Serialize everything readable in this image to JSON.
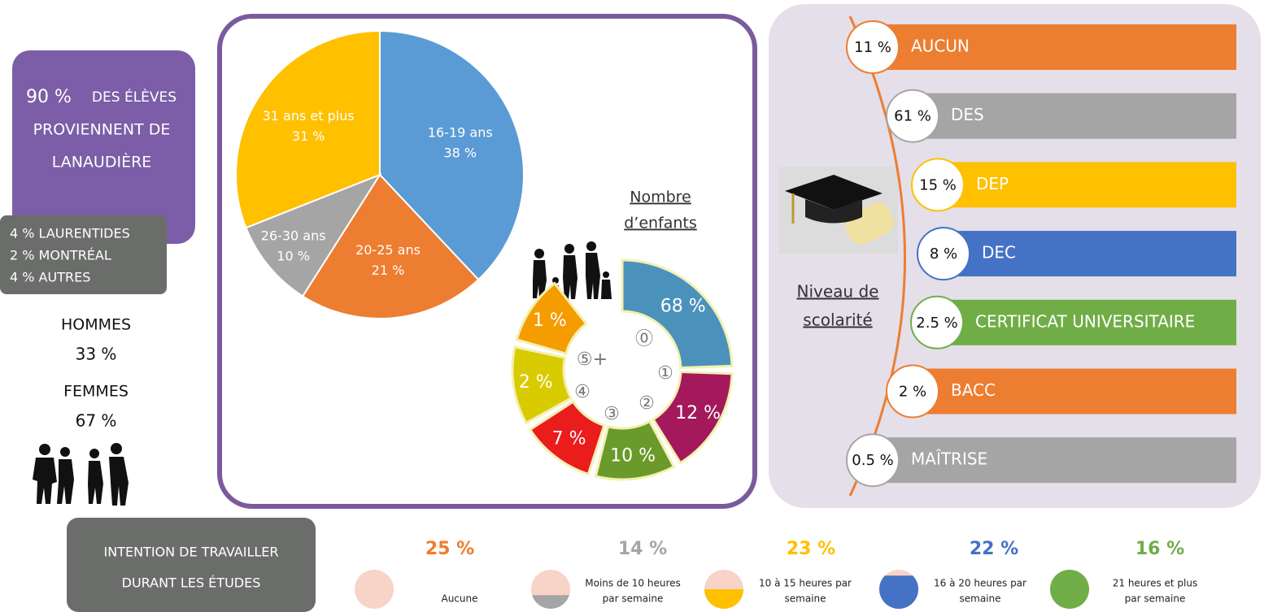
{
  "origin": {
    "main": "90 %",
    "main_text": [
      "DES ÉLÈVES",
      "PROVIENNENT DE",
      "LANAUDIÈRE"
    ],
    "others": [
      "4 % LAURENTIDES",
      "2 % MONTRÉAL",
      "4 % AUTRES"
    ]
  },
  "gender": [
    {
      "label": "HOMMES",
      "value": "33 %"
    },
    {
      "label": "FEMMES",
      "value": "67 %"
    }
  ],
  "chart_data": {
    "type": "pie",
    "categories": [
      "16-19 ans",
      "20-25 ans",
      "26-30 ans",
      "31 ans et plus"
    ],
    "values": [
      38,
      21,
      10,
      31
    ],
    "value_labels": [
      "38 %",
      "21 %",
      "10 %",
      "31 %"
    ],
    "colors": [
      "#5b9bd5",
      "#ed7d31",
      "#a5a5a5",
      "#ffc000"
    ]
  },
  "children": {
    "title": [
      "Nombre",
      "d’enfants"
    ],
    "segments": [
      {
        "label": "⓪",
        "value": "68 %",
        "color": "#4a92bc"
      },
      {
        "label": "①",
        "value": "12 %",
        "color": "#a3195b"
      },
      {
        "label": "②",
        "value": "10 %",
        "color": "#6a9a2a"
      },
      {
        "label": "③",
        "value": "7 %",
        "color": "#ea1c1c"
      },
      {
        "label": "④",
        "value": "2 %",
        "color": "#d8cb00"
      },
      {
        "label": "⑤+",
        "value": "1 %",
        "color": "#f59c00"
      }
    ]
  },
  "education": {
    "title": [
      "Niveau de",
      "scolarité"
    ],
    "levels": [
      {
        "value": "11 %",
        "label": "AUCUN",
        "color": "#ed7d31"
      },
      {
        "value": "61 %",
        "label": "DES",
        "color": "#a5a5a5"
      },
      {
        "value": "15 %",
        "label": "DEP",
        "color": "#ffc000"
      },
      {
        "value": "8 %",
        "label": "DEC",
        "color": "#4472c4"
      },
      {
        "value": "2.5 %",
        "label": "CERTIFICAT UNIVERSITAIRE",
        "color": "#70ad47"
      },
      {
        "value": "2 %",
        "label": "BACC",
        "color": "#ed7d31"
      },
      {
        "value": "0.5 %",
        "label": "MAÎTRISE",
        "color": "#a5a5a5"
      }
    ]
  },
  "work": {
    "title": [
      "INTENTION DE TRAVAILLER",
      "DURANT LES ÉTUDES"
    ],
    "options": [
      {
        "value": "25 %",
        "label": [
          "Aucune"
        ],
        "color": "#ed7d31"
      },
      {
        "value": "14 %",
        "label": [
          "Moins de 10 heures",
          "par semaine"
        ],
        "color": "#a5a5a5"
      },
      {
        "value": "23 %",
        "label": [
          "10 à 15 heures par",
          "semaine"
        ],
        "color": "#ffc000"
      },
      {
        "value": "22 %",
        "label": [
          "16 à 20 heures par",
          "semaine"
        ],
        "color": "#4472c4"
      },
      {
        "value": "16 %",
        "label": [
          "21 heures et plus",
          "par semaine"
        ],
        "color": "#70ad47"
      }
    ]
  }
}
